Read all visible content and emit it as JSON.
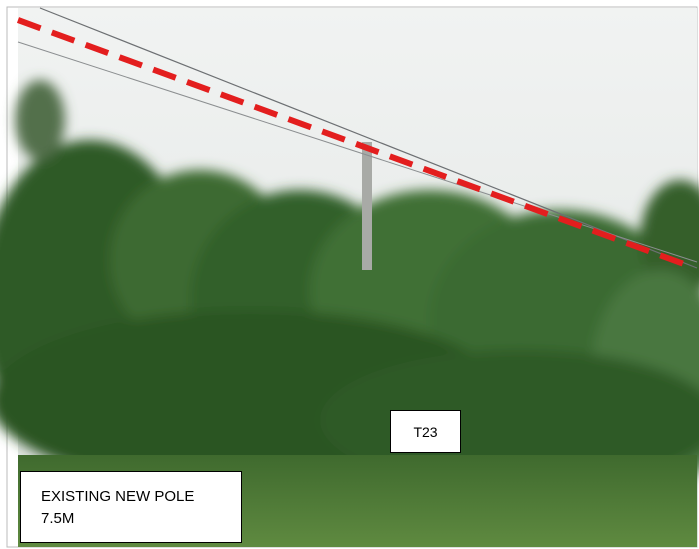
{
  "pole_tag": "T23",
  "note": {
    "lines": [
      "EXISTING NEW POLE",
      "7.5M"
    ]
  }
}
